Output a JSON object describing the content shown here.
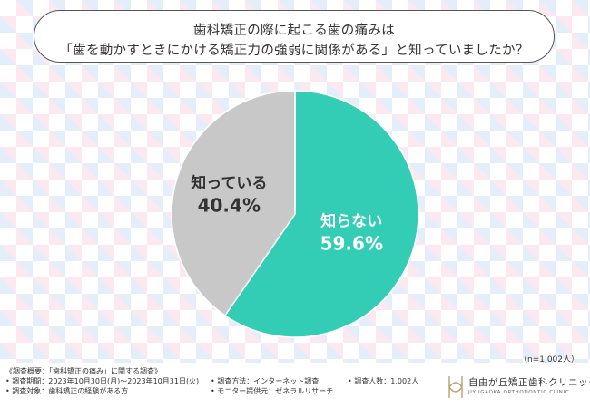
{
  "title": {
    "line1": "歯科矯正の際に起こる歯の痛みは",
    "line2": "「歯を動かすときにかける矯正力の強弱に関係がある」と知っていましたか？"
  },
  "chart_data": {
    "type": "pie",
    "categories": [
      "知らない",
      "知っている"
    ],
    "values": [
      59.6,
      40.4
    ],
    "value_labels": [
      "59.6%",
      "40.4%"
    ],
    "colors": [
      "#33ccb5",
      "#c8c8c8"
    ],
    "start_angle": "12 o'clock, clockwise"
  },
  "sample_note": "（n=1,002人）",
  "survey": {
    "heading": "《調査概要：「歯科矯正の痛み」に関する調査》",
    "period": "• 調査期間：2023年10月30日(月)〜2023年10月31日(火)",
    "method": "• 調査方法：インターネット調査",
    "count": "• 調査人数：1,002人",
    "target": "• 調査対象：歯科矯正の経験がある方",
    "provider": "• モニター提供元：ゼネラルリサーチ"
  },
  "clinic": {
    "name": "自由が丘矯正歯科クリニック",
    "name_en": "JIYUGAOKA ORTHODONTIC CLINIC"
  }
}
